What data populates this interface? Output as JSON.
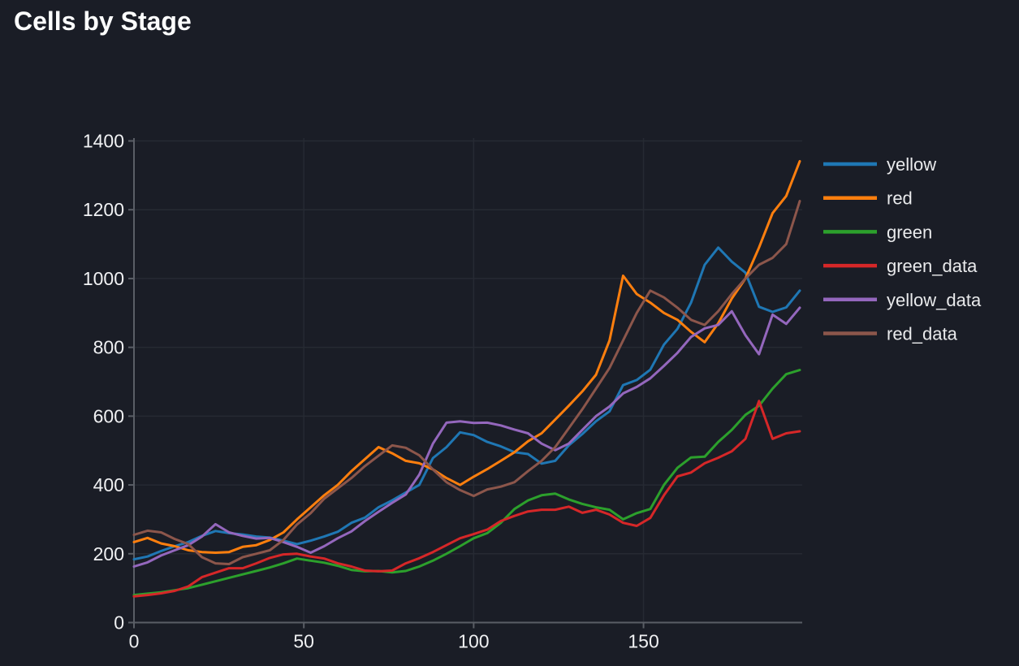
{
  "page": {
    "title": "Cells by Stage"
  },
  "chart_data": {
    "type": "line",
    "title": "Cells by Stage",
    "xlabel": "",
    "ylabel": "",
    "xlim": [
      0,
      196
    ],
    "ylim": [
      0,
      1400
    ],
    "x_ticks": [
      0,
      50,
      100,
      150
    ],
    "y_ticks": [
      0,
      200,
      400,
      600,
      800,
      1000,
      1200,
      1400
    ],
    "grid": true,
    "legend_position": "right",
    "x_start": 0,
    "x_step": 4,
    "series": [
      {
        "name": "yellow",
        "color": "#1f77b4",
        "values": [
          184,
          192,
          208,
          222,
          234,
          252,
          266,
          260,
          256,
          250,
          247,
          238,
          228,
          238,
          250,
          264,
          290,
          305,
          335,
          355,
          378,
          400,
          478,
          510,
          553,
          545,
          525,
          512,
          495,
          490,
          462,
          470,
          515,
          548,
          585,
          614,
          690,
          705,
          735,
          808,
          854,
          930,
          1040,
          1090,
          1049,
          1017,
          918,
          903,
          916,
          965
        ]
      },
      {
        "name": "red",
        "color": "#ff7f0e",
        "values": [
          234,
          246,
          230,
          222,
          210,
          205,
          203,
          205,
          220,
          225,
          240,
          262,
          300,
          335,
          370,
          400,
          440,
          475,
          510,
          492,
          470,
          463,
          445,
          420,
          400,
          424,
          446,
          470,
          495,
          527,
          550,
          590,
          630,
          672,
          720,
          820,
          1008,
          955,
          930,
          900,
          880,
          845,
          815,
          870,
          942,
          1000,
          1090,
          1190,
          1240,
          1341
        ]
      },
      {
        "name": "green",
        "color": "#2ca02c",
        "values": [
          80,
          84,
          88,
          94,
          100,
          110,
          120,
          130,
          140,
          150,
          160,
          172,
          186,
          180,
          174,
          165,
          153,
          149,
          150,
          146,
          150,
          163,
          180,
          200,
          222,
          245,
          260,
          290,
          330,
          355,
          370,
          375,
          358,
          345,
          335,
          328,
          300,
          318,
          330,
          400,
          450,
          480,
          482,
          525,
          560,
          604,
          630,
          680,
          722,
          734
        ]
      },
      {
        "name": "green_data",
        "color": "#d62728",
        "values": [
          76,
          80,
          85,
          92,
          105,
          132,
          145,
          158,
          158,
          172,
          188,
          198,
          200,
          192,
          186,
          172,
          163,
          151,
          149,
          151,
          172,
          187,
          205,
          225,
          245,
          257,
          270,
          295,
          310,
          323,
          328,
          328,
          337,
          319,
          328,
          314,
          290,
          281,
          304,
          370,
          425,
          436,
          463,
          479,
          498,
          534,
          644,
          534,
          550,
          556
        ]
      },
      {
        "name": "yellow_data",
        "color": "#9467bd",
        "values": [
          163,
          175,
          195,
          210,
          225,
          250,
          286,
          262,
          252,
          244,
          246,
          234,
          220,
          203,
          222,
          245,
          265,
          295,
          322,
          348,
          372,
          430,
          520,
          581,
          585,
          580,
          581,
          573,
          561,
          550,
          520,
          501,
          520,
          560,
          600,
          628,
          666,
          685,
          710,
          746,
          784,
          830,
          855,
          865,
          905,
          835,
          780,
          895,
          868,
          915
        ]
      },
      {
        "name": "red_data",
        "color": "#8c564b",
        "values": [
          255,
          267,
          262,
          243,
          228,
          190,
          172,
          170,
          190,
          200,
          210,
          240,
          285,
          318,
          360,
          390,
          420,
          455,
          485,
          515,
          508,
          486,
          445,
          408,
          385,
          368,
          387,
          395,
          408,
          440,
          470,
          510,
          565,
          620,
          680,
          740,
          820,
          900,
          965,
          945,
          915,
          880,
          865,
          905,
          955,
          1000,
          1040,
          1060,
          1100,
          1225
        ]
      }
    ],
    "colors": {
      "background": "#1a1d26",
      "grid": "#262a33",
      "spine": "#5a5e66",
      "tick_label": "#f0f1f3",
      "title": "#fcfdfd",
      "legend_text": "#e9eaec"
    }
  }
}
